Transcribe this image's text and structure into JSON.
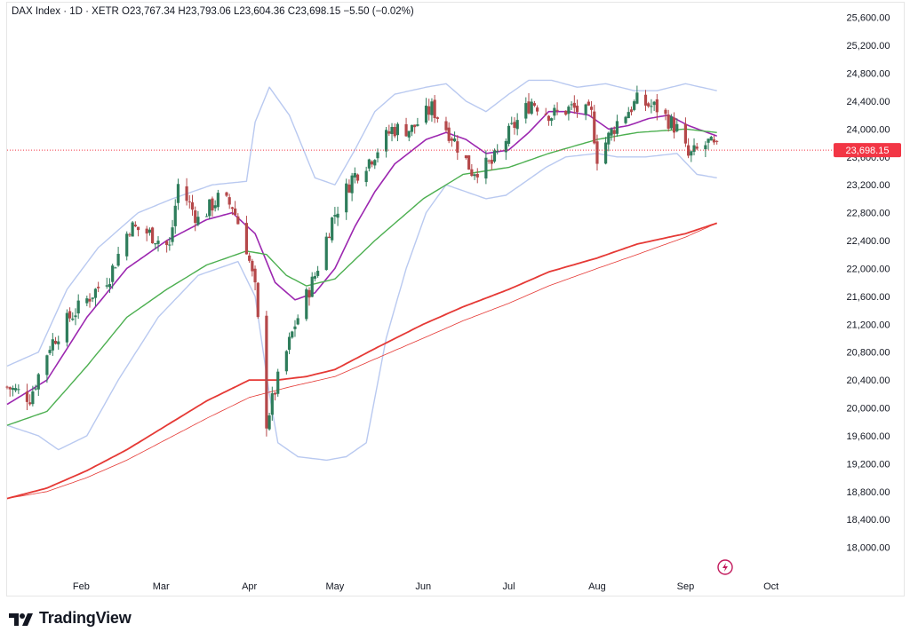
{
  "header": {
    "symbol": "DAX Index",
    "interval": "1D",
    "exchange": "XETR",
    "open": "O23,767.34",
    "high": "H23,793.06",
    "low": "L23,604.36",
    "close": "C23,698.15",
    "change": "−5.50 (−0.02%)"
  },
  "last_price_label": "23,698.15",
  "brand": {
    "name": "TradingView"
  },
  "colors": {
    "up": "#26a69a",
    "up_body": "#2e7d5b",
    "down": "#c0392b",
    "down_body": "#b5484a",
    "ma_fast": "#9c27b0",
    "ma_mid": "#4caf50",
    "ma_slow": "#e53935",
    "bands": "#b9c9f0",
    "last_price": "#f23645"
  },
  "chart_data": {
    "type": "candlestick",
    "yticks": [
      "25,600.00",
      "25,200.00",
      "24,800.00",
      "24,400.00",
      "24,000.00",
      "23,600.00",
      "23,200.00",
      "22,800.00",
      "22,400.00",
      "22,000.00",
      "21,600.00",
      "21,200.00",
      "20,800.00",
      "20,400.00",
      "20,000.00",
      "19,600.00",
      "19,200.00",
      "18,800.00",
      "18,400.00",
      "18,000.00"
    ],
    "ytick_values": [
      25600,
      25200,
      24800,
      24400,
      24000,
      23600,
      23200,
      22800,
      22400,
      22000,
      21600,
      21200,
      20800,
      20400,
      20000,
      19600,
      19200,
      18800,
      18400,
      18000
    ],
    "ylim": [
      17600,
      25800
    ],
    "xlim": [
      "2025-01-06",
      "2025-10-22"
    ],
    "xticks": [
      {
        "label": "Feb",
        "date": "2025-02-01"
      },
      {
        "label": "Mar",
        "date": "2025-03-01"
      },
      {
        "label": "Apr",
        "date": "2025-04-01"
      },
      {
        "label": "May",
        "date": "2025-05-01"
      },
      {
        "label": "Jun",
        "date": "2025-06-01"
      },
      {
        "label": "Jul",
        "date": "2025-07-01"
      },
      {
        "label": "Aug",
        "date": "2025-08-01"
      },
      {
        "label": "Sep",
        "date": "2025-09-01"
      },
      {
        "label": "Oct",
        "date": "2025-10-01"
      }
    ],
    "last_price": 23698.15,
    "ohlc_keyframes": [
      [
        "2025-01-06",
        20300
      ],
      [
        "2025-01-14",
        20150
      ],
      [
        "2025-01-21",
        20900
      ],
      [
        "2025-01-28",
        21300
      ],
      [
        "2025-02-04",
        21600
      ],
      [
        "2025-02-11",
        21900
      ],
      [
        "2025-02-18",
        22600
      ],
      [
        "2025-02-25",
        22500
      ],
      [
        "2025-03-04",
        22300
      ],
      [
        "2025-03-07",
        23200
      ],
      [
        "2025-03-14",
        22700
      ],
      [
        "2025-03-21",
        23000
      ],
      [
        "2025-03-26",
        22900
      ],
      [
        "2025-03-31",
        22300
      ],
      [
        "2025-04-03",
        21700
      ],
      [
        "2025-04-07",
        19800
      ],
      [
        "2025-04-11",
        20400
      ],
      [
        "2025-04-17",
        21200
      ],
      [
        "2025-04-24",
        21900
      ],
      [
        "2025-04-30",
        22700
      ],
      [
        "2025-05-07",
        23300
      ],
      [
        "2025-05-14",
        23600
      ],
      [
        "2025-05-21",
        24000
      ],
      [
        "2025-05-28",
        24000
      ],
      [
        "2025-06-04",
        24300
      ],
      [
        "2025-06-11",
        23900
      ],
      [
        "2025-06-18",
        23400
      ],
      [
        "2025-06-25",
        23500
      ],
      [
        "2025-07-02",
        24000
      ],
      [
        "2025-07-09",
        24400
      ],
      [
        "2025-07-16",
        24200
      ],
      [
        "2025-07-23",
        24300
      ],
      [
        "2025-07-30",
        24200
      ],
      [
        "2025-08-01",
        23600
      ],
      [
        "2025-08-08",
        24100
      ],
      [
        "2025-08-15",
        24400
      ],
      [
        "2025-08-22",
        24300
      ],
      [
        "2025-08-29",
        24000
      ],
      [
        "2025-09-02",
        23600
      ],
      [
        "2025-09-09",
        23800
      ],
      [
        "2025-09-12",
        23698.15
      ]
    ],
    "series": [
      {
        "kind": "sma_fast",
        "points": [
          [
            "2025-01-06",
            20050
          ],
          [
            "2025-01-20",
            20400
          ],
          [
            "2025-02-03",
            21300
          ],
          [
            "2025-02-17",
            22000
          ],
          [
            "2025-03-03",
            22400
          ],
          [
            "2025-03-17",
            22700
          ],
          [
            "2025-03-26",
            22800
          ],
          [
            "2025-04-03",
            22500
          ],
          [
            "2025-04-10",
            21800
          ],
          [
            "2025-04-17",
            21550
          ],
          [
            "2025-04-24",
            21650
          ],
          [
            "2025-05-01",
            22000
          ],
          [
            "2025-05-08",
            22600
          ],
          [
            "2025-05-15",
            23100
          ],
          [
            "2025-05-22",
            23500
          ],
          [
            "2025-06-02",
            23850
          ],
          [
            "2025-06-09",
            23950
          ],
          [
            "2025-06-16",
            23850
          ],
          [
            "2025-06-23",
            23650
          ],
          [
            "2025-07-01",
            23700
          ],
          [
            "2025-07-08",
            23950
          ],
          [
            "2025-07-15",
            24250
          ],
          [
            "2025-07-22",
            24250
          ],
          [
            "2025-07-29",
            24200
          ],
          [
            "2025-08-05",
            24000
          ],
          [
            "2025-08-12",
            24050
          ],
          [
            "2025-08-19",
            24150
          ],
          [
            "2025-08-26",
            24200
          ],
          [
            "2025-09-02",
            24050
          ],
          [
            "2025-09-12",
            23900
          ]
        ]
      },
      {
        "kind": "sma_mid",
        "points": [
          [
            "2025-01-06",
            19750
          ],
          [
            "2025-01-20",
            19950
          ],
          [
            "2025-02-03",
            20600
          ],
          [
            "2025-02-17",
            21300
          ],
          [
            "2025-03-03",
            21700
          ],
          [
            "2025-03-17",
            22050
          ],
          [
            "2025-03-31",
            22250
          ],
          [
            "2025-04-07",
            22200
          ],
          [
            "2025-04-14",
            21900
          ],
          [
            "2025-04-21",
            21750
          ],
          [
            "2025-05-01",
            21850
          ],
          [
            "2025-05-15",
            22400
          ],
          [
            "2025-06-01",
            23000
          ],
          [
            "2025-06-15",
            23350
          ],
          [
            "2025-07-01",
            23450
          ],
          [
            "2025-07-15",
            23650
          ],
          [
            "2025-08-01",
            23850
          ],
          [
            "2025-08-15",
            23950
          ],
          [
            "2025-09-01",
            24000
          ],
          [
            "2025-09-12",
            23950
          ]
        ]
      },
      {
        "kind": "sma_slow",
        "points": [
          [
            "2025-01-06",
            18700
          ],
          [
            "2025-01-20",
            18850
          ],
          [
            "2025-02-03",
            19100
          ],
          [
            "2025-02-17",
            19400
          ],
          [
            "2025-03-03",
            19750
          ],
          [
            "2025-03-17",
            20100
          ],
          [
            "2025-04-01",
            20400
          ],
          [
            "2025-04-11",
            20400
          ],
          [
            "2025-04-21",
            20450
          ],
          [
            "2025-05-01",
            20550
          ],
          [
            "2025-05-15",
            20850
          ],
          [
            "2025-06-01",
            21200
          ],
          [
            "2025-06-15",
            21450
          ],
          [
            "2025-07-01",
            21700
          ],
          [
            "2025-07-15",
            21950
          ],
          [
            "2025-08-01",
            22150
          ],
          [
            "2025-08-15",
            22350
          ],
          [
            "2025-09-01",
            22500
          ],
          [
            "2025-09-12",
            22650
          ]
        ]
      },
      {
        "kind": "sma_slow_thin",
        "points": [
          [
            "2025-01-06",
            18700
          ],
          [
            "2025-01-20",
            18800
          ],
          [
            "2025-02-03",
            19000
          ],
          [
            "2025-02-17",
            19250
          ],
          [
            "2025-03-03",
            19550
          ],
          [
            "2025-03-17",
            19850
          ],
          [
            "2025-04-01",
            20150
          ],
          [
            "2025-04-15",
            20300
          ],
          [
            "2025-05-01",
            20450
          ],
          [
            "2025-05-15",
            20700
          ],
          [
            "2025-06-01",
            21000
          ],
          [
            "2025-06-15",
            21250
          ],
          [
            "2025-07-01",
            21500
          ],
          [
            "2025-07-15",
            21750
          ],
          [
            "2025-08-01",
            22000
          ],
          [
            "2025-08-15",
            22200
          ],
          [
            "2025-09-01",
            22450
          ],
          [
            "2025-09-12",
            22650
          ]
        ]
      },
      {
        "kind": "band_upper",
        "points": [
          [
            "2025-01-06",
            20600
          ],
          [
            "2025-01-17",
            20800
          ],
          [
            "2025-01-27",
            21700
          ],
          [
            "2025-02-07",
            22300
          ],
          [
            "2025-02-21",
            22800
          ],
          [
            "2025-03-05",
            23000
          ],
          [
            "2025-03-19",
            23200
          ],
          [
            "2025-03-31",
            23250
          ],
          [
            "2025-04-03",
            24100
          ],
          [
            "2025-04-08",
            24600
          ],
          [
            "2025-04-15",
            24200
          ],
          [
            "2025-04-24",
            23300
          ],
          [
            "2025-05-01",
            23200
          ],
          [
            "2025-05-08",
            23700
          ],
          [
            "2025-05-15",
            24250
          ],
          [
            "2025-05-22",
            24500
          ],
          [
            "2025-06-02",
            24600
          ],
          [
            "2025-06-09",
            24650
          ],
          [
            "2025-06-16",
            24400
          ],
          [
            "2025-06-23",
            24250
          ],
          [
            "2025-07-01",
            24500
          ],
          [
            "2025-07-08",
            24700
          ],
          [
            "2025-07-16",
            24700
          ],
          [
            "2025-07-25",
            24600
          ],
          [
            "2025-08-04",
            24650
          ],
          [
            "2025-08-14",
            24550
          ],
          [
            "2025-08-22",
            24550
          ],
          [
            "2025-09-01",
            24650
          ],
          [
            "2025-09-12",
            24550
          ]
        ]
      },
      {
        "kind": "band_lower",
        "points": [
          [
            "2025-01-06",
            19750
          ],
          [
            "2025-01-17",
            19600
          ],
          [
            "2025-01-24",
            19400
          ],
          [
            "2025-02-03",
            19600
          ],
          [
            "2025-02-14",
            20400
          ],
          [
            "2025-02-28",
            21300
          ],
          [
            "2025-03-14",
            21900
          ],
          [
            "2025-03-28",
            22100
          ],
          [
            "2025-04-03",
            21600
          ],
          [
            "2025-04-08",
            20200
          ],
          [
            "2025-04-11",
            19500
          ],
          [
            "2025-04-18",
            19300
          ],
          [
            "2025-04-28",
            19250
          ],
          [
            "2025-05-05",
            19300
          ],
          [
            "2025-05-12",
            19500
          ],
          [
            "2025-05-19",
            21000
          ],
          [
            "2025-05-26",
            22000
          ],
          [
            "2025-06-02",
            22800
          ],
          [
            "2025-06-09",
            23200
          ],
          [
            "2025-06-16",
            23100
          ],
          [
            "2025-06-23",
            23000
          ],
          [
            "2025-06-30",
            23050
          ],
          [
            "2025-07-07",
            23250
          ],
          [
            "2025-07-14",
            23450
          ],
          [
            "2025-07-21",
            23600
          ],
          [
            "2025-08-01",
            23650
          ],
          [
            "2025-08-08",
            23600
          ],
          [
            "2025-08-18",
            23600
          ],
          [
            "2025-08-29",
            23650
          ],
          [
            "2025-09-05",
            23350
          ],
          [
            "2025-09-12",
            23300
          ]
        ]
      }
    ]
  }
}
